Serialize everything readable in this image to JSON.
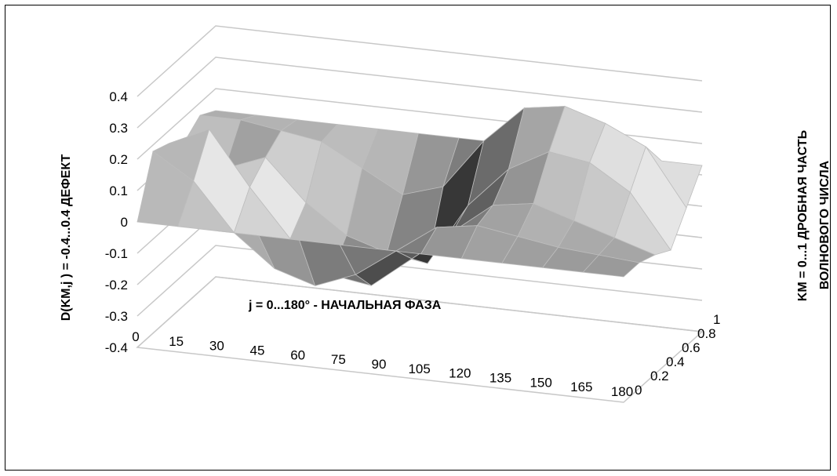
{
  "chart_data": {
    "type": "surface",
    "title": "",
    "zlabel": "D(KM,j ) = -0.4...0.4 ДЕФЕКТ",
    "xlabel": "j = 0...180° - НАЧАЛЬНАЯ ФАЗА",
    "depth_label_lines": [
      "KM = 0...1 ДРОБНАЯ ЧАСТЬ",
      "ВОЛНОВОГО ЧИСЛА"
    ],
    "phi_values": [
      0,
      15,
      30,
      45,
      60,
      75,
      90,
      105,
      120,
      135,
      150,
      165,
      180
    ],
    "km_values": [
      0,
      0.2,
      0.4,
      0.6,
      0.8,
      1
    ],
    "z_ticks": [
      "0.4",
      "0.3",
      "0.2",
      "0.1",
      "0",
      "-0.1",
      "-0.2",
      "-0.3",
      "-0.4"
    ],
    "km_ticks": [
      "0",
      "0.2",
      "0.4",
      "0.6",
      "0.8",
      "1"
    ],
    "phi_ticks": [
      "0",
      "15",
      "30",
      "45",
      "60",
      "75",
      "90",
      "105",
      "120",
      "135",
      "150",
      "165",
      "180"
    ],
    "zlim": [
      -0.4,
      0.4
    ],
    "surface": [
      [
        0.0,
        0.0,
        0.0,
        0.0,
        0.0,
        0.0,
        0.0,
        0.0,
        0.0,
        0.0,
        0.0,
        0.0,
        0.0
      ],
      [
        0.18,
        0.1,
        -0.05,
        -0.15,
        -0.19,
        -0.14,
        -0.05,
        0.04,
        0.06,
        0.04,
        0.02,
        0.01,
        0.0
      ],
      [
        0.16,
        0.22,
        0.05,
        -0.1,
        -0.2,
        -0.22,
        -0.12,
        -0.02,
        0.08,
        0.1,
        0.06,
        0.02,
        -0.02
      ],
      [
        0.12,
        0.05,
        0.1,
        -0.03,
        -0.12,
        -0.16,
        -0.18,
        0.02,
        0.15,
        0.22,
        0.2,
        0.12,
        -0.05
      ],
      [
        0.16,
        0.16,
        0.14,
        0.12,
        0.05,
        -0.02,
        0.02,
        0.18,
        0.3,
        0.32,
        0.28,
        0.22,
        0.04
      ],
      [
        0.13,
        0.13,
        0.13,
        0.13,
        0.13,
        0.13,
        0.13,
        0.13,
        0.13,
        0.13,
        0.13,
        0.13,
        0.13
      ]
    ],
    "grid": true,
    "colors": {
      "dark": "#2a2a2a",
      "light": "#e6e6e6",
      "grid": "#c8c8c8"
    }
  }
}
